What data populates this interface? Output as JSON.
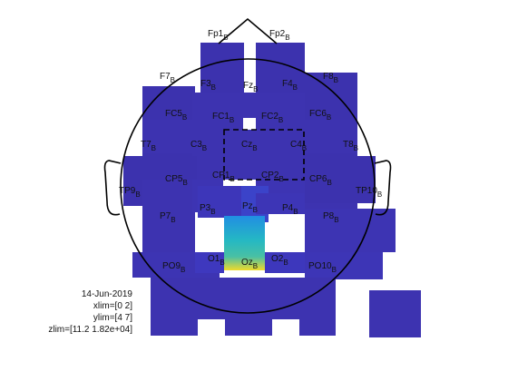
{
  "figure": {
    "date": "14-Jun-2019",
    "xlim": "xlim=[0 2]",
    "ylim": "ylim=[4 7]",
    "zlim": "zlim=[11.2 1.82e+04]",
    "channel_suffix": "B",
    "colors": {
      "map_base": "#3b2fae",
      "head_outline": "#000000"
    }
  },
  "channels": [
    {
      "id": "Fp1",
      "name": "Fp1",
      "level": 0.02
    },
    {
      "id": "Fp2",
      "name": "Fp2",
      "level": 0.02
    },
    {
      "id": "F7",
      "name": "F7",
      "level": 0.02
    },
    {
      "id": "F3",
      "name": "F3",
      "level": 0.03
    },
    {
      "id": "Fz",
      "name": "Fz",
      "level": 0.03
    },
    {
      "id": "F4",
      "name": "F4",
      "level": 0.03
    },
    {
      "id": "F8",
      "name": "F8",
      "level": 0.02
    },
    {
      "id": "FC5",
      "name": "FC5",
      "level": 0.03
    },
    {
      "id": "FC1",
      "name": "FC1",
      "level": 0.03
    },
    {
      "id": "FC2",
      "name": "FC2",
      "level": 0.03
    },
    {
      "id": "FC6",
      "name": "FC6",
      "level": 0.03
    },
    {
      "id": "T7",
      "name": "T7",
      "level": 0.02
    },
    {
      "id": "C3",
      "name": "C3",
      "level": 0.03
    },
    {
      "id": "Cz",
      "name": "Cz",
      "level": 0.03
    },
    {
      "id": "C4",
      "name": "C4",
      "level": 0.03
    },
    {
      "id": "T8",
      "name": "T8",
      "level": 0.02
    },
    {
      "id": "TP9",
      "name": "TP9",
      "level": 0.02
    },
    {
      "id": "CP5",
      "name": "CP5",
      "level": 0.03
    },
    {
      "id": "CP1",
      "name": "CP1",
      "level": 0.04
    },
    {
      "id": "CP2",
      "name": "CP2",
      "level": 0.04
    },
    {
      "id": "CP6",
      "name": "CP6",
      "level": 0.03
    },
    {
      "id": "TP10",
      "name": "TP10",
      "level": 0.02
    },
    {
      "id": "P7",
      "name": "P7",
      "level": 0.03
    },
    {
      "id": "P3",
      "name": "P3",
      "level": 0.06
    },
    {
      "id": "Pz",
      "name": "Pz",
      "level": 0.12
    },
    {
      "id": "P4",
      "name": "P4",
      "level": 0.05
    },
    {
      "id": "P8",
      "name": "P8",
      "level": 0.04
    },
    {
      "id": "PO9",
      "name": "PO9",
      "level": 0.04
    },
    {
      "id": "O1",
      "name": "O1",
      "level": 0.08
    },
    {
      "id": "Oz",
      "name": "Oz",
      "level": 0.55
    },
    {
      "id": "O2",
      "name": "O2",
      "level": 0.07
    },
    {
      "id": "PO10",
      "name": "PO10",
      "level": 0.05
    }
  ]
}
